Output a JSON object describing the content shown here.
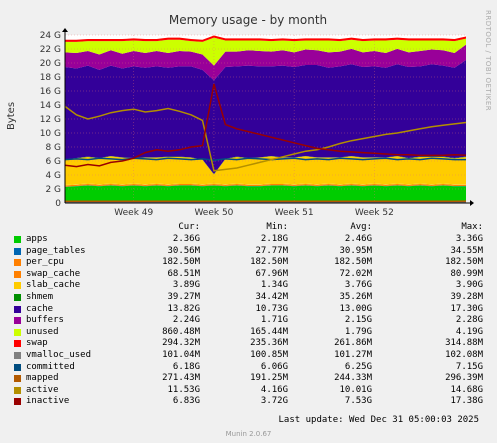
{
  "chart_data": {
    "type": "area",
    "title": "Memory usage - by month",
    "ylabel": "Bytes",
    "watermark": "RRDTOOL / TOBI OETIKER",
    "ylim": [
      0,
      24
    ],
    "yunit": "G",
    "yticks": [
      "0",
      "2 G",
      "4 G",
      "6 G",
      "8 G",
      "10 G",
      "12 G",
      "14 G",
      "16 G",
      "18 G",
      "20 G",
      "22 G",
      "24 G"
    ],
    "xticks": [
      "Week 49",
      "Week 50",
      "Week 51",
      "Week 52"
    ],
    "xlim_days": [
      0,
      35
    ],
    "xtick_days": [
      6,
      13,
      20,
      27
    ],
    "grid": true,
    "stacked_series": [
      {
        "name": "apps",
        "color": "#00cc00",
        "values": [
          2.3,
          2.4,
          2.5,
          2.4,
          2.5,
          2.4,
          2.5,
          2.4,
          2.5,
          2.4,
          2.5,
          2.5,
          2.4,
          2.5,
          2.4,
          2.5,
          2.4,
          2.4,
          2.5,
          2.5,
          2.4,
          2.5,
          2.4,
          2.5,
          2.4,
          2.5,
          2.4,
          2.5,
          2.4,
          2.5,
          2.4,
          2.5,
          2.4,
          2.5,
          2.4,
          2.4
        ]
      },
      {
        "name": "page_tables",
        "color": "#0066b3",
        "values": [
          0.03,
          0.03,
          0.03,
          0.03,
          0.03,
          0.03,
          0.03,
          0.03,
          0.03,
          0.03,
          0.03,
          0.03,
          0.03,
          0.03,
          0.03,
          0.03,
          0.03,
          0.03,
          0.03,
          0.03,
          0.03,
          0.03,
          0.03,
          0.03,
          0.03,
          0.03,
          0.03,
          0.03,
          0.03,
          0.03,
          0.03,
          0.03,
          0.03,
          0.03,
          0.03,
          0.03
        ]
      },
      {
        "name": "per_cpu",
        "color": "#ff8000",
        "values": [
          0.18,
          0.18,
          0.18,
          0.18,
          0.18,
          0.18,
          0.18,
          0.18,
          0.18,
          0.18,
          0.18,
          0.18,
          0.18,
          0.18,
          0.18,
          0.18,
          0.18,
          0.18,
          0.18,
          0.18,
          0.18,
          0.18,
          0.18,
          0.18,
          0.18,
          0.18,
          0.18,
          0.18,
          0.18,
          0.18,
          0.18,
          0.18,
          0.18,
          0.18,
          0.18,
          0.18
        ]
      },
      {
        "name": "swap_cache",
        "color": "#ffcc00",
        "values": [
          0.07,
          0.07,
          0.07,
          0.07,
          0.07,
          0.07,
          0.07,
          0.07,
          0.07,
          0.07,
          0.07,
          0.07,
          0.07,
          0.07,
          0.07,
          0.07,
          0.07,
          0.07,
          0.07,
          0.07,
          0.07,
          0.07,
          0.07,
          0.07,
          0.07,
          0.07,
          0.07,
          0.07,
          0.07,
          0.07,
          0.07,
          0.07,
          0.07,
          0.07,
          0.07,
          0.07
        ]
      },
      {
        "name": "slab_cache",
        "color": "#ffcc00",
        "values": [
          3.6,
          3.7,
          3.8,
          3.7,
          3.9,
          3.8,
          3.6,
          3.8,
          3.7,
          3.9,
          3.8,
          3.7,
          3.5,
          1.3,
          3.6,
          3.8,
          3.7,
          3.8,
          3.9,
          3.7,
          3.8,
          3.9,
          3.8,
          3.7,
          3.8,
          3.9,
          3.8,
          3.7,
          3.8,
          3.9,
          3.7,
          3.8,
          3.9,
          3.8,
          3.7,
          3.9
        ]
      },
      {
        "name": "shmem",
        "color": "#008f00",
        "values": [
          0.04,
          0.04,
          0.04,
          0.04,
          0.04,
          0.04,
          0.04,
          0.04,
          0.04,
          0.04,
          0.04,
          0.04,
          0.04,
          0.04,
          0.04,
          0.04,
          0.04,
          0.04,
          0.04,
          0.04,
          0.04,
          0.04,
          0.04,
          0.04,
          0.04,
          0.04,
          0.04,
          0.04,
          0.04,
          0.04,
          0.04,
          0.04,
          0.04,
          0.04,
          0.04,
          0.04
        ]
      },
      {
        "name": "cache",
        "color": "#330099",
        "values": [
          13.2,
          12.8,
          13.0,
          12.6,
          12.9,
          12.7,
          13.1,
          12.8,
          13.0,
          12.7,
          12.9,
          13.0,
          12.8,
          13.4,
          13.1,
          12.9,
          13.2,
          13.0,
          12.8,
          13.1,
          12.9,
          13.0,
          13.2,
          12.8,
          13.0,
          13.1,
          12.9,
          13.0,
          12.8,
          13.1,
          13.0,
          12.9,
          13.2,
          13.0,
          12.9,
          13.8
        ]
      },
      {
        "name": "buffers",
        "color": "#990099",
        "values": [
          2.1,
          2.2,
          2.1,
          2.2,
          2.2,
          2.1,
          2.2,
          2.1,
          2.2,
          2.1,
          2.2,
          2.1,
          2.2,
          2.1,
          2.2,
          2.1,
          2.2,
          2.2,
          2.1,
          2.2,
          2.1,
          2.2,
          2.1,
          2.2,
          2.1,
          2.2,
          2.1,
          2.2,
          2.1,
          2.2,
          2.1,
          2.2,
          2.1,
          2.2,
          2.1,
          2.2
        ]
      },
      {
        "name": "unused",
        "color": "#ccff00",
        "values": [
          1.5,
          1.6,
          1.4,
          1.9,
          1.3,
          1.8,
          1.5,
          1.7,
          1.4,
          1.9,
          1.6,
          1.5,
          1.8,
          4.0,
          1.6,
          1.6,
          1.4,
          1.5,
          1.5,
          1.4,
          1.6,
          1.3,
          1.4,
          1.7,
          1.5,
          1.3,
          1.6,
          1.5,
          1.8,
          1.3,
          1.7,
          1.5,
          1.3,
          1.4,
          1.7,
          0.86
        ]
      },
      {
        "name": "swap",
        "color": "#ff0000",
        "values": [
          0.3,
          0.3,
          0.3,
          0.3,
          0.3,
          0.3,
          0.3,
          0.3,
          0.3,
          0.3,
          0.3,
          0.3,
          0.3,
          0.3,
          0.3,
          0.3,
          0.3,
          0.3,
          0.3,
          0.3,
          0.3,
          0.3,
          0.3,
          0.3,
          0.3,
          0.3,
          0.3,
          0.3,
          0.3,
          0.3,
          0.3,
          0.3,
          0.3,
          0.3,
          0.3,
          0.3
        ]
      }
    ],
    "line_series": [
      {
        "name": "vmalloc_used",
        "color": "#808080",
        "values": [
          0.1,
          0.1,
          0.1,
          0.1,
          0.1,
          0.1,
          0.1,
          0.1,
          0.1,
          0.1,
          0.1,
          0.1,
          0.1,
          0.1,
          0.1,
          0.1,
          0.1,
          0.1,
          0.1,
          0.1,
          0.1,
          0.1,
          0.1,
          0.1,
          0.1,
          0.1,
          0.1,
          0.1,
          0.1,
          0.1,
          0.1,
          0.1,
          0.1,
          0.1,
          0.1,
          0.1
        ]
      },
      {
        "name": "committed",
        "color": "#004d80",
        "values": [
          6.2,
          6.3,
          6.2,
          6.4,
          6.3,
          6.2,
          6.4,
          6.3,
          6.2,
          6.4,
          6.3,
          6.2,
          6.3,
          6.1,
          6.3,
          6.2,
          6.4,
          6.3,
          6.2,
          6.3,
          6.4,
          6.2,
          6.3,
          6.2,
          6.4,
          6.3,
          6.2,
          6.3,
          6.4,
          6.2,
          6.3,
          6.2,
          6.4,
          6.3,
          6.2,
          6.2
        ]
      },
      {
        "name": "mapped",
        "color": "#b35a00",
        "values": [
          0.25,
          0.25,
          0.25,
          0.25,
          0.25,
          0.25,
          0.25,
          0.25,
          0.25,
          0.25,
          0.25,
          0.25,
          0.25,
          0.25,
          0.25,
          0.25,
          0.25,
          0.25,
          0.25,
          0.25,
          0.25,
          0.25,
          0.25,
          0.25,
          0.25,
          0.25,
          0.25,
          0.25,
          0.25,
          0.25,
          0.25,
          0.25,
          0.25,
          0.25,
          0.25,
          0.27
        ]
      },
      {
        "name": "active",
        "color": "#b38f00",
        "values": [
          13.8,
          12.6,
          12.0,
          12.4,
          12.9,
          13.2,
          13.4,
          13.0,
          13.2,
          13.5,
          13.1,
          12.6,
          11.8,
          4.6,
          4.8,
          5.0,
          5.4,
          5.8,
          6.2,
          6.6,
          7.0,
          7.4,
          7.6,
          8.0,
          8.5,
          8.9,
          9.2,
          9.5,
          9.8,
          10.0,
          10.3,
          10.6,
          10.9,
          11.1,
          11.3,
          11.5
        ]
      },
      {
        "name": "inactive",
        "color": "#990000",
        "values": [
          5.4,
          5.2,
          5.5,
          5.3,
          5.8,
          6.0,
          6.4,
          7.2,
          7.6,
          7.4,
          7.6,
          8.0,
          8.2,
          17.0,
          11.2,
          10.6,
          10.2,
          9.8,
          9.4,
          9.0,
          8.6,
          8.2,
          7.8,
          7.6,
          7.4,
          7.3,
          7.2,
          7.1,
          7.0,
          6.9,
          6.9,
          6.8,
          6.8,
          6.8,
          6.9,
          6.83
        ]
      }
    ]
  },
  "legend": {
    "headers": [
      "Cur:",
      "Min:",
      "Avg:",
      "Max:"
    ],
    "rows": [
      {
        "name": "apps",
        "color": "#00cc00",
        "cur": "2.36G",
        "min": "2.18G",
        "avg": "2.46G",
        "max": "3.36G"
      },
      {
        "name": "page_tables",
        "color": "#0066b3",
        "cur": "30.56M",
        "min": "27.77M",
        "avg": "30.95M",
        "max": "34.55M"
      },
      {
        "name": "per_cpu",
        "color": "#ff8000",
        "cur": "182.50M",
        "min": "182.50M",
        "avg": "182.50M",
        "max": "182.50M"
      },
      {
        "name": "swap_cache",
        "color": "#ff8000",
        "cur": "68.51M",
        "min": "67.96M",
        "avg": "72.02M",
        "max": "80.99M"
      },
      {
        "name": "slab_cache",
        "color": "#ffcc00",
        "cur": "3.89G",
        "min": "1.34G",
        "avg": "3.76G",
        "max": "3.90G"
      },
      {
        "name": "shmem",
        "color": "#008f00",
        "cur": "39.27M",
        "min": "34.42M",
        "avg": "35.26M",
        "max": "39.28M"
      },
      {
        "name": "cache",
        "color": "#330099",
        "cur": "13.82G",
        "min": "10.73G",
        "avg": "13.00G",
        "max": "17.30G"
      },
      {
        "name": "buffers",
        "color": "#990099",
        "cur": "2.24G",
        "min": "1.71G",
        "avg": "2.15G",
        "max": "2.28G"
      },
      {
        "name": "unused",
        "color": "#ccff00",
        "cur": "860.48M",
        "min": "165.44M",
        "avg": "1.79G",
        "max": "4.19G"
      },
      {
        "name": "swap",
        "color": "#ff0000",
        "cur": "294.32M",
        "min": "235.36M",
        "avg": "261.86M",
        "max": "314.88M"
      },
      {
        "name": "vmalloc_used",
        "color": "#808080",
        "cur": "101.04M",
        "min": "100.85M",
        "avg": "101.27M",
        "max": "102.08M"
      },
      {
        "name": "committed",
        "color": "#004d80",
        "cur": "6.18G",
        "min": "6.06G",
        "avg": "6.25G",
        "max": "7.15G"
      },
      {
        "name": "mapped",
        "color": "#b35a00",
        "cur": "271.43M",
        "min": "191.25M",
        "avg": "244.33M",
        "max": "296.39M"
      },
      {
        "name": "active",
        "color": "#b38f00",
        "cur": "11.53G",
        "min": "4.16G",
        "avg": "10.01G",
        "max": "14.68G"
      },
      {
        "name": "inactive",
        "color": "#990000",
        "cur": "6.83G",
        "min": "3.72G",
        "avg": "7.53G",
        "max": "17.38G"
      }
    ]
  },
  "footer": {
    "last_update": "Last update: Wed Dec 31 05:00:03 2025",
    "munin": "Munin 2.0.67"
  }
}
